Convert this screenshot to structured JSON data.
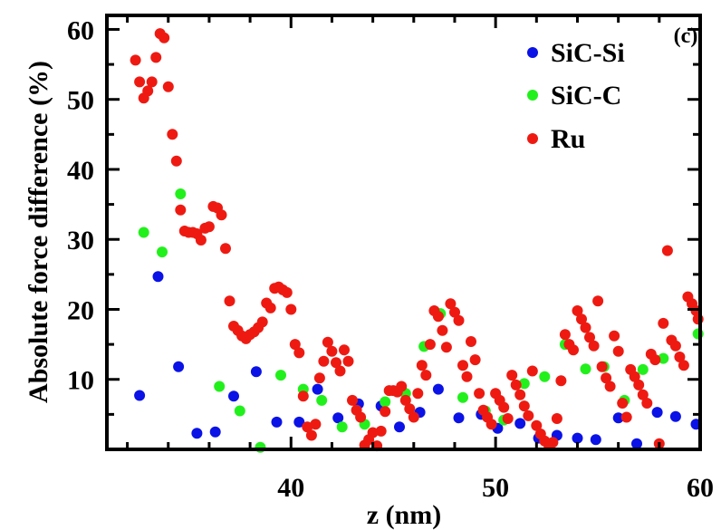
{
  "chart_data": {
    "type": "scatter",
    "panel_label": "(c)",
    "xlabel": "z (nm)",
    "ylabel": "Absolute force difference (%)",
    "xlim": [
      31,
      60
    ],
    "ylim": [
      0,
      62
    ],
    "xticks": [
      40,
      50,
      60
    ],
    "yticks": [
      10,
      20,
      30,
      40,
      50,
      60
    ],
    "x_minor_step": 2,
    "y_minor_step": 5,
    "grid": false,
    "legend_position": "top-right",
    "series": [
      {
        "name": "SiC-Si",
        "color": "#0a12e6",
        "points": [
          [
            32.6,
            7.7
          ],
          [
            33.5,
            24.7
          ],
          [
            34.5,
            11.8
          ],
          [
            35.4,
            2.3
          ],
          [
            36.3,
            2.5
          ],
          [
            37.2,
            7.6
          ],
          [
            38.3,
            11.1
          ],
          [
            39.3,
            3.9
          ],
          [
            40.4,
            3.9
          ],
          [
            41.3,
            8.6
          ],
          [
            42.3,
            4.5
          ],
          [
            43.3,
            6.5
          ],
          [
            44.4,
            6.2
          ],
          [
            45.3,
            3.2
          ],
          [
            46.3,
            5.3
          ],
          [
            47.2,
            8.6
          ],
          [
            48.2,
            4.5
          ],
          [
            49.3,
            5.0
          ],
          [
            50.1,
            3.0
          ],
          [
            51.2,
            3.7
          ],
          [
            52.1,
            1.6
          ],
          [
            53.0,
            2.0
          ],
          [
            54.0,
            1.6
          ],
          [
            54.9,
            1.4
          ],
          [
            56.0,
            4.5
          ],
          [
            56.9,
            0.8
          ],
          [
            57.9,
            5.3
          ],
          [
            58.8,
            4.7
          ],
          [
            59.8,
            3.6
          ]
        ]
      },
      {
        "name": "SiC-C",
        "color": "#22f01c",
        "points": [
          [
            32.8,
            31.0
          ],
          [
            33.7,
            28.2
          ],
          [
            34.6,
            36.5
          ],
          [
            36.5,
            9.0
          ],
          [
            37.5,
            5.5
          ],
          [
            38.5,
            0.3
          ],
          [
            39.5,
            10.6
          ],
          [
            40.6,
            8.6
          ],
          [
            41.5,
            7.0
          ],
          [
            42.5,
            3.2
          ],
          [
            43.6,
            3.6
          ],
          [
            44.6,
            6.8
          ],
          [
            45.6,
            8.0
          ],
          [
            46.5,
            14.7
          ],
          [
            47.3,
            19.4
          ],
          [
            48.4,
            7.4
          ],
          [
            49.5,
            5.5
          ],
          [
            50.4,
            4.2
          ],
          [
            51.4,
            9.4
          ],
          [
            52.4,
            10.4
          ],
          [
            53.4,
            15.0
          ],
          [
            54.4,
            11.5
          ],
          [
            55.3,
            11.8
          ],
          [
            56.3,
            7.0
          ],
          [
            57.2,
            11.4
          ],
          [
            58.2,
            13.0
          ],
          [
            59.9,
            16.5
          ]
        ]
      },
      {
        "name": "Ru",
        "color": "#ee1a12",
        "points": [
          [
            32.4,
            55.6
          ],
          [
            32.6,
            52.5
          ],
          [
            32.8,
            50.2
          ],
          [
            33.0,
            51.2
          ],
          [
            33.2,
            52.5
          ],
          [
            33.4,
            56.0
          ],
          [
            33.6,
            59.4
          ],
          [
            33.8,
            58.8
          ],
          [
            34.0,
            51.8
          ],
          [
            34.2,
            45.0
          ],
          [
            34.4,
            41.2
          ],
          [
            34.6,
            34.2
          ],
          [
            34.8,
            31.2
          ],
          [
            35.0,
            31.0
          ],
          [
            35.2,
            31.0
          ],
          [
            35.4,
            30.8
          ],
          [
            35.6,
            29.9
          ],
          [
            35.8,
            31.6
          ],
          [
            36.0,
            31.8
          ],
          [
            36.2,
            34.7
          ],
          [
            36.4,
            34.5
          ],
          [
            36.6,
            33.5
          ],
          [
            36.8,
            28.7
          ],
          [
            37.0,
            21.2
          ],
          [
            37.2,
            17.6
          ],
          [
            37.4,
            17.0
          ],
          [
            37.6,
            16.2
          ],
          [
            37.8,
            15.8
          ],
          [
            38.0,
            16.4
          ],
          [
            38.2,
            16.8
          ],
          [
            38.4,
            17.4
          ],
          [
            38.6,
            18.2
          ],
          [
            38.8,
            20.9
          ],
          [
            39.0,
            20.2
          ],
          [
            39.2,
            23.0
          ],
          [
            39.4,
            23.2
          ],
          [
            39.6,
            22.8
          ],
          [
            39.8,
            22.4
          ],
          [
            40.0,
            20.0
          ],
          [
            40.2,
            15.0
          ],
          [
            40.4,
            13.8
          ],
          [
            40.6,
            7.6
          ],
          [
            40.8,
            3.2
          ],
          [
            41.0,
            2.0
          ],
          [
            41.2,
            3.6
          ],
          [
            41.4,
            10.2
          ],
          [
            41.6,
            12.6
          ],
          [
            41.8,
            15.3
          ],
          [
            42.0,
            14.0
          ],
          [
            42.2,
            12.4
          ],
          [
            42.4,
            11.2
          ],
          [
            42.6,
            14.2
          ],
          [
            42.8,
            12.6
          ],
          [
            43.0,
            7.0
          ],
          [
            43.2,
            5.6
          ],
          [
            43.4,
            4.6
          ],
          [
            43.6,
            0.6
          ],
          [
            43.8,
            1.4
          ],
          [
            44.0,
            2.4
          ],
          [
            44.2,
            0.5
          ],
          [
            44.4,
            2.6
          ],
          [
            44.6,
            5.4
          ],
          [
            44.8,
            8.4
          ],
          [
            45.0,
            8.4
          ],
          [
            45.2,
            8.2
          ],
          [
            45.4,
            9.0
          ],
          [
            45.6,
            7.0
          ],
          [
            45.8,
            5.8
          ],
          [
            46.0,
            4.6
          ],
          [
            46.2,
            8.0
          ],
          [
            46.4,
            12.0
          ],
          [
            46.6,
            10.6
          ],
          [
            46.8,
            15.0
          ],
          [
            47.0,
            19.8
          ],
          [
            47.2,
            19.0
          ],
          [
            47.4,
            17.0
          ],
          [
            47.6,
            14.6
          ],
          [
            47.8,
            20.8
          ],
          [
            48.0,
            19.6
          ],
          [
            48.2,
            18.4
          ],
          [
            48.4,
            12.0
          ],
          [
            48.6,
            10.4
          ],
          [
            48.8,
            15.4
          ],
          [
            49.0,
            12.8
          ],
          [
            49.2,
            8.0
          ],
          [
            49.4,
            5.6
          ],
          [
            49.6,
            4.6
          ],
          [
            49.8,
            3.6
          ],
          [
            50.0,
            8.0
          ],
          [
            50.2,
            7.0
          ],
          [
            50.4,
            6.0
          ],
          [
            50.6,
            4.4
          ],
          [
            50.8,
            10.6
          ],
          [
            51.0,
            9.2
          ],
          [
            51.2,
            7.8
          ],
          [
            51.4,
            6.2
          ],
          [
            51.6,
            4.8
          ],
          [
            51.8,
            11.2
          ],
          [
            52.0,
            3.4
          ],
          [
            52.2,
            2.2
          ],
          [
            52.4,
            1.2
          ],
          [
            52.6,
            0.6
          ],
          [
            52.8,
            1.0
          ],
          [
            53.0,
            4.4
          ],
          [
            53.2,
            9.8
          ],
          [
            53.4,
            16.4
          ],
          [
            53.6,
            15.0
          ],
          [
            53.8,
            14.2
          ],
          [
            54.0,
            19.8
          ],
          [
            54.2,
            18.6
          ],
          [
            54.4,
            17.4
          ],
          [
            54.6,
            16.0
          ],
          [
            54.8,
            14.8
          ],
          [
            55.0,
            21.2
          ],
          [
            55.2,
            11.8
          ],
          [
            55.4,
            10.2
          ],
          [
            55.6,
            9.0
          ],
          [
            55.8,
            16.2
          ],
          [
            56.0,
            14.0
          ],
          [
            56.2,
            6.6
          ],
          [
            56.4,
            4.6
          ],
          [
            56.6,
            11.4
          ],
          [
            56.8,
            10.4
          ],
          [
            57.0,
            9.2
          ],
          [
            57.2,
            7.8
          ],
          [
            57.4,
            6.6
          ],
          [
            57.6,
            13.6
          ],
          [
            57.8,
            12.8
          ],
          [
            58.0,
            0.8
          ],
          [
            58.2,
            18.0
          ],
          [
            58.4,
            28.4
          ],
          [
            58.6,
            15.6
          ],
          [
            58.8,
            14.8
          ],
          [
            59.0,
            13.2
          ],
          [
            59.2,
            12.0
          ],
          [
            59.4,
            21.8
          ],
          [
            59.6,
            20.8
          ],
          [
            59.8,
            19.8
          ],
          [
            59.9,
            18.6
          ]
        ]
      }
    ]
  }
}
